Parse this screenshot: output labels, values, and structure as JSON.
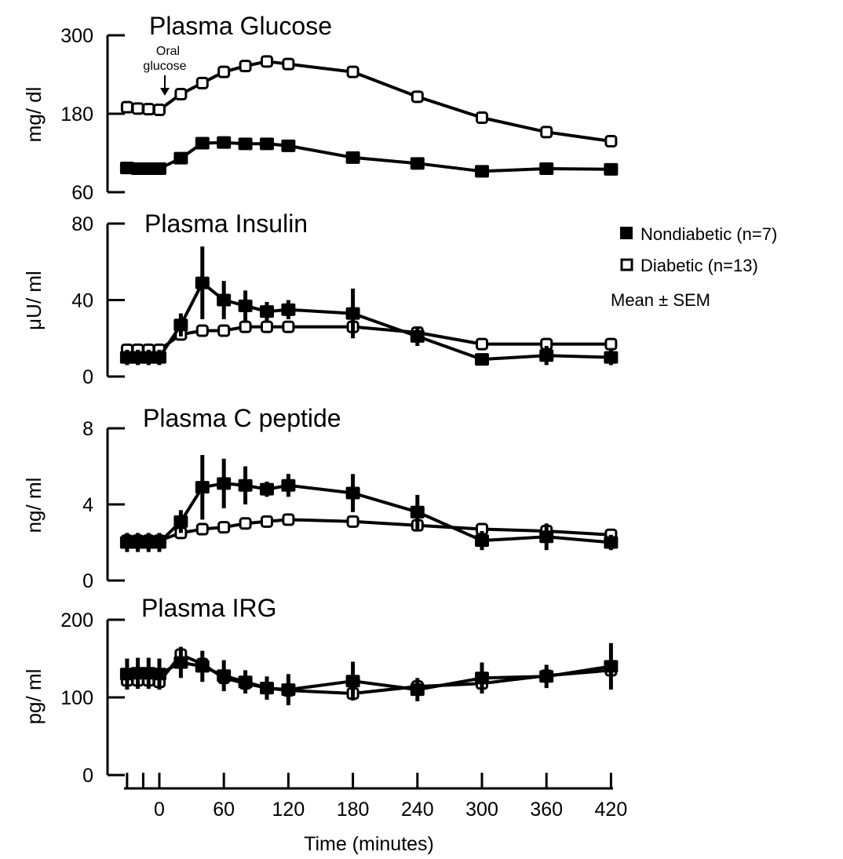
{
  "chart_data": [
    {
      "type": "line",
      "title": "Plasma Glucose",
      "ylabel": "mg/ dl",
      "ylim": [
        60,
        300
      ],
      "yticks": [
        300,
        180,
        60
      ],
      "annotation": "Oral glucose",
      "x": [
        -30,
        -20,
        -10,
        0,
        20,
        40,
        60,
        80,
        100,
        120,
        180,
        240,
        300,
        360,
        420
      ],
      "series": [
        {
          "name": "Nondiabetic (n=7)",
          "marker": "filled",
          "values": [
            97,
            96,
            96,
            96,
            112,
            135,
            136,
            134,
            134,
            131,
            113,
            104,
            92,
            96,
            95
          ],
          "sem": [
            4,
            4,
            4,
            4,
            5,
            6,
            6,
            6,
            6,
            6,
            6,
            6,
            8,
            6,
            6
          ]
        },
        {
          "name": "Diabetic (n=13)",
          "marker": "open",
          "values": [
            190,
            188,
            187,
            186,
            210,
            227,
            244,
            253,
            260,
            256,
            244,
            206,
            174,
            152,
            138
          ],
          "sem": [
            4,
            4,
            4,
            4,
            4,
            4,
            4,
            4,
            4,
            4,
            4,
            4,
            4,
            4,
            4
          ]
        }
      ]
    },
    {
      "type": "line",
      "title": "Plasma Insulin",
      "ylabel": "μU/ ml",
      "ylim": [
        0,
        80
      ],
      "yticks": [
        80,
        40,
        0
      ],
      "x": [
        -30,
        -20,
        -10,
        0,
        20,
        40,
        60,
        80,
        100,
        120,
        180,
        240,
        300,
        360,
        420
      ],
      "series": [
        {
          "name": "Nondiabetic (n=7)",
          "marker": "filled",
          "values": [
            10,
            10,
            10,
            10,
            27,
            49,
            40,
            37,
            34,
            35,
            33,
            21,
            9,
            11,
            10
          ],
          "sem": [
            4,
            4,
            4,
            4,
            6,
            19,
            10,
            8,
            5,
            5,
            13,
            5,
            3,
            5,
            4
          ]
        },
        {
          "name": "Diabetic (n=13)",
          "marker": "open",
          "values": [
            14,
            14,
            14,
            14,
            22,
            24,
            24,
            26,
            26,
            26,
            26,
            23,
            17,
            17,
            17
          ],
          "sem": [
            2,
            2,
            2,
            2,
            2,
            2,
            2,
            2,
            2,
            2,
            2,
            2,
            2,
            2,
            2
          ]
        }
      ]
    },
    {
      "type": "line",
      "title": "Plasma C peptide",
      "ylabel": "ng/ ml",
      "ylim": [
        0,
        8
      ],
      "yticks": [
        8,
        4,
        0
      ],
      "x": [
        -30,
        -20,
        -10,
        0,
        20,
        40,
        60,
        80,
        100,
        120,
        180,
        240,
        300,
        360,
        420
      ],
      "series": [
        {
          "name": "Nondiabetic (n=7)",
          "marker": "filled",
          "values": [
            2.0,
            2.0,
            2.0,
            2.0,
            3.1,
            4.9,
            5.1,
            5.0,
            4.8,
            5.0,
            4.6,
            3.6,
            2.1,
            2.3,
            2.0
          ],
          "sem": [
            0.5,
            0.5,
            0.5,
            0.5,
            0.6,
            1.7,
            1.3,
            1.0,
            0.4,
            0.6,
            1.0,
            0.9,
            0.5,
            0.7,
            0.4
          ]
        },
        {
          "name": "Diabetic (n=13)",
          "marker": "open",
          "values": [
            2.1,
            2.1,
            2.1,
            2.1,
            2.5,
            2.7,
            2.8,
            3.0,
            3.1,
            3.2,
            3.1,
            2.9,
            2.7,
            2.6,
            2.4
          ],
          "sem": [
            0.3,
            0.3,
            0.3,
            0.3,
            0.2,
            0.2,
            0.2,
            0.2,
            0.2,
            0.2,
            0.2,
            0.2,
            0.3,
            0.3,
            0.3
          ]
        }
      ]
    },
    {
      "type": "line",
      "title": "Plasma IRG",
      "ylabel": "pg/ ml",
      "ylim": [
        0,
        200
      ],
      "yticks": [
        200,
        100,
        0
      ],
      "xticks": [
        0,
        60,
        120,
        180,
        240,
        300,
        360,
        420
      ],
      "xlabel": "Time (minutes)",
      "x": [
        -30,
        -20,
        -10,
        0,
        20,
        40,
        60,
        80,
        100,
        120,
        180,
        240,
        300,
        360,
        420
      ],
      "series": [
        {
          "name": "Nondiabetic (n=7)",
          "marker": "filled",
          "values": [
            130,
            131,
            131,
            130,
            145,
            140,
            128,
            120,
            112,
            110,
            121,
            110,
            125,
            127,
            140
          ],
          "sem": [
            20,
            20,
            20,
            20,
            20,
            20,
            20,
            15,
            15,
            20,
            25,
            15,
            20,
            15,
            30
          ]
        },
        {
          "name": "Diabetic (n=13)",
          "marker": "open",
          "values": [
            122,
            122,
            122,
            120,
            155,
            143,
            125,
            118,
            112,
            109,
            105,
            114,
            118,
            128,
            135
          ],
          "sem": [
            8,
            8,
            8,
            8,
            10,
            10,
            10,
            8,
            8,
            8,
            8,
            8,
            8,
            8,
            8
          ]
        }
      ]
    }
  ],
  "legend": {
    "items": [
      {
        "label": "Nondiabetic (n=7)",
        "marker": "filled"
      },
      {
        "label": "Diabetic (n=13)",
        "marker": "open"
      }
    ],
    "note": "Mean ± SEM"
  }
}
